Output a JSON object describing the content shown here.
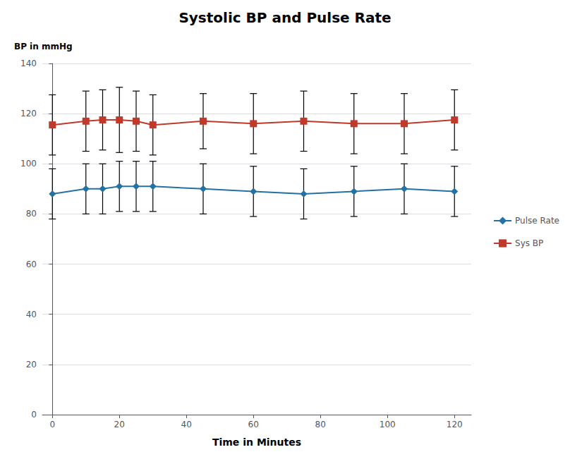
{
  "chart_data": {
    "type": "line",
    "title": "Systolic BP and Pulse Rate",
    "annotations": [
      "BP in mmHg"
    ],
    "xlabel": "Time in Minutes",
    "x": [
      0,
      10,
      15,
      20,
      25,
      30,
      45,
      60,
      75,
      90,
      105,
      120
    ],
    "series": [
      {
        "name": "Pulse Rate",
        "color": "#2471A3",
        "marker": "diamond",
        "values": [
          88,
          90,
          90,
          91,
          91,
          91,
          90,
          89,
          88,
          89,
          90,
          89
        ],
        "errors": [
          10,
          10,
          10,
          10,
          10,
          10,
          10,
          10,
          10,
          10,
          10,
          10
        ]
      },
      {
        "name": "Sys BP",
        "color": "#C1392B",
        "marker": "square",
        "values": [
          115.5,
          117.0,
          117.5,
          117.5,
          117.0,
          115.5,
          117.0,
          116.0,
          117.0,
          116.0,
          116.0,
          117.5
        ],
        "errors": [
          12,
          12,
          12,
          13,
          12,
          12,
          11,
          12,
          12,
          12,
          12,
          12
        ]
      }
    ],
    "xlim": [
      -3,
      125
    ],
    "xticks": [
      0,
      20,
      40,
      60,
      80,
      100,
      120
    ],
    "ylim": [
      0,
      140
    ],
    "yticks": [
      0,
      20,
      40,
      60,
      80,
      100,
      120,
      140
    ],
    "grid": true,
    "legend": "right"
  }
}
